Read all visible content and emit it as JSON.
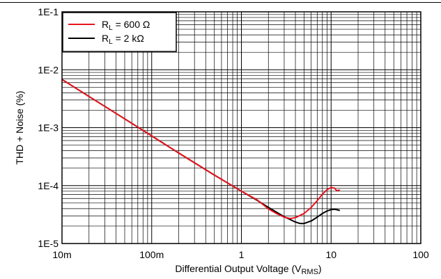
{
  "chart_data": {
    "type": "line",
    "title": "",
    "xlabel": "Differential Output Voltage (V",
    "xlabel_sub": "RMS",
    "xlabel_close": ")",
    "ylabel": "THD + Noise (%)",
    "xscale": "log",
    "yscale": "log",
    "xlim": [
      0.01,
      100
    ],
    "ylim": [
      1e-05,
      0.1
    ],
    "x_ticks": [
      {
        "value": 0.01,
        "label": "10m"
      },
      {
        "value": 0.1,
        "label": "100m"
      },
      {
        "value": 1,
        "label": "1"
      },
      {
        "value": 10,
        "label": "10"
      },
      {
        "value": 100,
        "label": "100"
      }
    ],
    "y_ticks": [
      {
        "value": 0.1,
        "label": "1E-1"
      },
      {
        "value": 0.01,
        "label": "1E-2"
      },
      {
        "value": 0.001,
        "label": "1E-3"
      },
      {
        "value": 0.0001,
        "label": "1E-4"
      },
      {
        "value": 1e-05,
        "label": "1E-5"
      }
    ],
    "grid": true,
    "legend_position": "top-left",
    "series": [
      {
        "name": "R",
        "name_sub": "L",
        "name_rest": " =  600 Ω",
        "color": "#e8141c",
        "points": [
          [
            0.01,
            0.0068
          ],
          [
            0.02,
            0.00345
          ],
          [
            0.05,
            0.00142
          ],
          [
            0.1,
            0.00072
          ],
          [
            0.2,
            0.000365
          ],
          [
            0.5,
            0.000152
          ],
          [
            1.0,
            8e-05
          ],
          [
            1.5,
            5.65e-05
          ],
          [
            2.0,
            3.95e-05
          ],
          [
            2.5,
            3.25e-05
          ],
          [
            3.0,
            2.85e-05
          ],
          [
            3.5,
            2.7e-05
          ],
          [
            4.0,
            2.8e-05
          ],
          [
            5.0,
            3.3e-05
          ],
          [
            6.0,
            4.2e-05
          ],
          [
            7.0,
            5.5e-05
          ],
          [
            8.0,
            7.1e-05
          ],
          [
            9.0,
            8.5e-05
          ],
          [
            10.0,
            9.3e-05
          ],
          [
            11.0,
            9e-05
          ],
          [
            11.5,
            8.2e-05
          ],
          [
            12.0,
            8.2e-05
          ],
          [
            12.5,
            8.5e-05
          ]
        ]
      },
      {
        "name": "R",
        "name_sub": "L",
        "name_rest": " =  2 kΩ",
        "color": "#000000",
        "points": [
          [
            0.01,
            0.0068
          ],
          [
            0.02,
            0.00345
          ],
          [
            0.05,
            0.00142
          ],
          [
            0.1,
            0.00072
          ],
          [
            0.2,
            0.000365
          ],
          [
            0.5,
            0.000152
          ],
          [
            1.0,
            8e-05
          ],
          [
            1.5,
            5.55e-05
          ],
          [
            2.0,
            4.2e-05
          ],
          [
            3.0,
            2.9e-05
          ],
          [
            4.0,
            2.35e-05
          ],
          [
            4.5,
            2.22e-05
          ],
          [
            5.0,
            2.22e-05
          ],
          [
            6.0,
            2.45e-05
          ],
          [
            7.0,
            2.85e-05
          ],
          [
            8.0,
            3.3e-05
          ],
          [
            9.0,
            3.65e-05
          ],
          [
            10.0,
            3.85e-05
          ],
          [
            11.0,
            3.9e-05
          ],
          [
            12.0,
            3.78e-05
          ],
          [
            12.5,
            3.72e-05
          ]
        ]
      }
    ]
  }
}
